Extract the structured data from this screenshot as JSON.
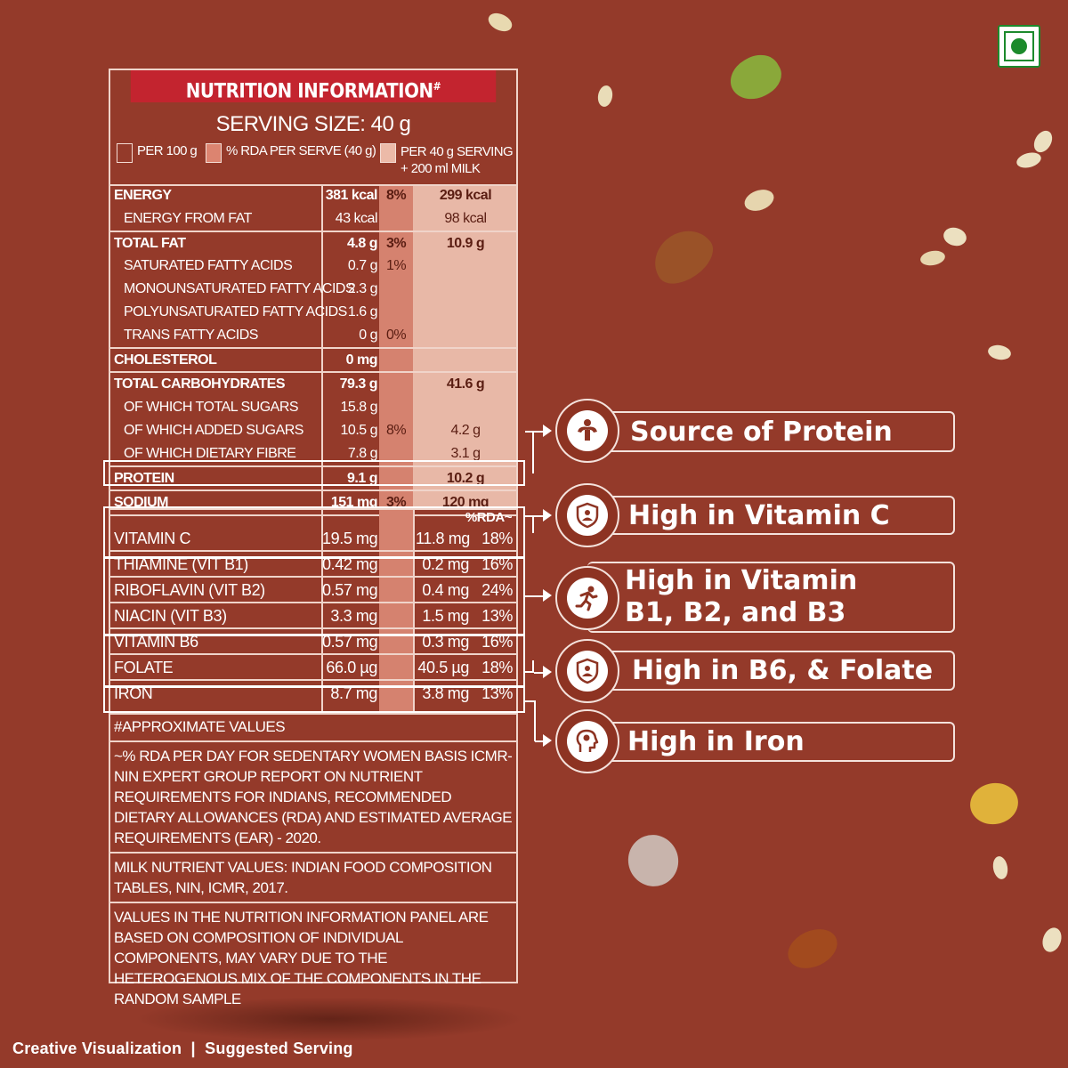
{
  "panel": {
    "title": "NUTRITION INFORMATION",
    "title_mark": "#",
    "serving_size": "SERVING SIZE: 40 g",
    "legend": {
      "per100": "PER 100 g",
      "rda": "% RDA PER SERVE (40 g)",
      "milk_line1": "PER 40 g SERVING",
      "milk_line2": "+ 200 ml MILK"
    },
    "rows": [
      {
        "label": "ENERGY",
        "per100": "381 kcal",
        "rda": "8%",
        "milk": "299 kcal",
        "bold": true
      },
      {
        "label": "ENERGY FROM FAT",
        "per100": "43 kcal",
        "rda": "",
        "milk": "98 kcal",
        "sub": true
      },
      {
        "label": "TOTAL FAT",
        "per100": "4.8 g",
        "rda": "3%",
        "milk": "10.9 g",
        "bold": true
      },
      {
        "label": "SATURATED FATTY ACIDS",
        "per100": "0.7 g",
        "rda": "1%",
        "milk": "",
        "sub": true
      },
      {
        "label": "MONOUNSATURATED FATTY ACIDS",
        "per100": "2.3 g",
        "rda": "",
        "milk": "",
        "sub": true
      },
      {
        "label": "POLYUNSATURATED FATTY ACIDS",
        "per100": "1.6 g",
        "rda": "",
        "milk": "",
        "sub": true
      },
      {
        "label": "TRANS FATTY ACIDS",
        "per100": "0 g",
        "rda": "0%",
        "milk": "",
        "sub": true
      },
      {
        "label": "CHOLESTEROL",
        "per100": "0 mg",
        "rda": "",
        "milk": "",
        "bold": true
      },
      {
        "label": "TOTAL CARBOHYDRATES",
        "per100": "79.3 g",
        "rda": "",
        "milk": "41.6 g",
        "bold": true
      },
      {
        "label": "OF WHICH TOTAL SUGARS",
        "per100": "15.8 g",
        "rda": "",
        "milk": "",
        "sub": true
      },
      {
        "label": "OF WHICH ADDED SUGARS",
        "per100": "10.5 g",
        "rda": "8%",
        "milk": "4.2 g",
        "sub": true
      },
      {
        "label": "OF WHICH DIETARY FIBRE",
        "per100": "7.8 g",
        "rda": "",
        "milk": "3.1 g",
        "sub": true
      },
      {
        "label": "PROTEIN",
        "per100": "9.1 g",
        "rda": "",
        "milk": "10.2 g",
        "bold": true
      },
      {
        "label": "SODIUM",
        "per100": "151 mg",
        "rda": "3%",
        "milk": "120 mg",
        "bold": true
      }
    ],
    "rda_header": "%RDA~",
    "vitamins": [
      {
        "label": "VITAMIN C",
        "per100": "19.5 mg",
        "milk": "11.8 mg",
        "rda": "18%"
      },
      {
        "label": "THIAMINE (VIT B1)",
        "per100": "0.42 mg",
        "milk": "0.2 mg",
        "rda": "16%"
      },
      {
        "label": "RIBOFLAVIN (VIT B2)",
        "per100": "0.57 mg",
        "milk": "0.4 mg",
        "rda": "24%"
      },
      {
        "label": "NIACIN (VIT B3)",
        "per100": "3.3 mg",
        "milk": "1.5 mg",
        "rda": "13%"
      },
      {
        "label": "VITAMIN B6",
        "per100": "0.57 mg",
        "milk": "0.3 mg",
        "rda": "16%"
      },
      {
        "label": "FOLATE",
        "per100": "66.0 µg",
        "milk": "40.5 µg",
        "rda": "18%"
      },
      {
        "label": "IRON",
        "per100": "8.7 mg",
        "milk": "3.8 mg",
        "rda": "13%"
      }
    ],
    "footnotes": [
      "#APPROXIMATE VALUES",
      "~% RDA PER DAY FOR SEDENTARY WOMEN BASIS ICMR-NIN EXPERT GROUP REPORT ON NUTRIENT REQUIREMENTS FOR INDIANS, RECOMMENDED DIETARY ALLOWANCES (RDA) AND ESTIMATED AVERAGE REQUIREMENTS (EAR) - 2020.",
      "MILK NUTRIENT VALUES: INDIAN FOOD COMPOSITION TABLES, NIN, ICMR, 2017.",
      "VALUES IN THE NUTRITION INFORMATION PANEL ARE BASED ON COMPOSITION OF INDIVIDUAL COMPONENTS, MAY VARY DUE TO THE HETEROGENOUS MIX OF THE COMPONENTS IN THE RANDOM SAMPLE"
    ]
  },
  "callouts": {
    "protein": {
      "text": "Source of Protein",
      "icon": "muscle-icon"
    },
    "vitc": {
      "text": "High in Vitamin C",
      "icon": "shield-person-icon"
    },
    "vitb": {
      "line1": "High in Vitamin",
      "line2": "B1, B2, and B3",
      "icon": "runner-icon"
    },
    "b6": {
      "text": "High in B6, & Folate",
      "icon": "shield-person-icon"
    },
    "iron": {
      "text": "High in Iron",
      "icon": "brain-head-icon"
    }
  },
  "footer": "Creative Visualization  |  Suggested Serving",
  "colors": {
    "background": "#943a2a",
    "header_red": "#c3242f",
    "rda_column": "#d5826f",
    "milk_column": "#e8b8a7",
    "veg_green": "#1c8a2c"
  }
}
